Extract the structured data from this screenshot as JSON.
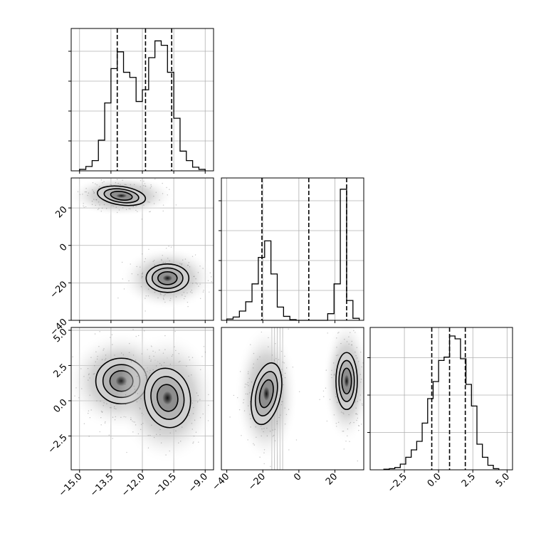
{
  "chart_data": {
    "type": "corner",
    "panels": [
      {
        "id": "hist-x",
        "type": "histogram",
        "x_ticks": [
          "−15.0",
          "−13.5",
          "−12.0",
          "−10.5",
          "−9.0"
        ],
        "x_tick_values": [
          -15.0,
          -13.5,
          -12.0,
          -10.5,
          -9.0
        ],
        "xlim": [
          -15.4,
          -8.6
        ],
        "bin_edges": [
          -15.0,
          -14.7,
          -14.4,
          -14.1,
          -13.8,
          -13.5,
          -13.2,
          -12.9,
          -12.6,
          -12.3,
          -12.0,
          -11.7,
          -11.4,
          -11.1,
          -10.8,
          -10.5,
          -10.2,
          -9.9,
          -9.6,
          -9.3,
          -9.0
        ],
        "counts": [
          2,
          6,
          14,
          42,
          93,
          140,
          163,
          135,
          128,
          95,
          111,
          155,
          178,
          172,
          135,
          72,
          27,
          14,
          5,
          2
        ],
        "ylim": [
          0,
          195
        ],
        "quantiles": [
          -13.2,
          -11.85,
          -10.6
        ]
      },
      {
        "id": "scatter-x-y",
        "type": "contour",
        "x_ticks": [
          "−15.0",
          "−13.5",
          "−12.0",
          "−10.5",
          "−9.0"
        ],
        "y_ticks": [
          "20",
          "0",
          "−20",
          "−40"
        ],
        "y_tick_values": [
          20,
          0,
          -20,
          -40
        ],
        "xlim": [
          -15.4,
          -8.6
        ],
        "ylim": [
          -40,
          36
        ],
        "clusters": [
          {
            "x": -13.0,
            "y": 26.5
          },
          {
            "x": -10.8,
            "y": -17.5
          }
        ]
      },
      {
        "id": "hist-y",
        "type": "histogram",
        "x_ticks": [
          "−40",
          "−20",
          "0",
          "20"
        ],
        "x_tick_values": [
          -40,
          -20,
          0,
          20
        ],
        "xlim": [
          -43,
          36
        ],
        "bin_edges": [
          -40,
          -36.5,
          -33,
          -29.5,
          -26,
          -22.5,
          -19,
          -15.5,
          -12,
          -8.5,
          -5,
          -1.5,
          2,
          5.5,
          9,
          12.5,
          16,
          19.5,
          23,
          26.5,
          30,
          33.5
        ],
        "counts": [
          2,
          5,
          14,
          28,
          55,
          95,
          120,
          70,
          20,
          6,
          1,
          0,
          0,
          0,
          0,
          0,
          10,
          55,
          198,
          30,
          3
        ],
        "ylim": [
          0,
          215
        ],
        "quantiles": [
          -20.5,
          5.5,
          26.5
        ]
      },
      {
        "id": "scatter-x-z",
        "type": "contour",
        "x_ticks": [
          "−15.0",
          "−13.5",
          "−12.0",
          "−10.5",
          "−9.0"
        ],
        "y_ticks": [
          "5.0",
          "2.5",
          "0.0",
          "−2.5"
        ],
        "y_tick_values": [
          5.0,
          2.5,
          0.0,
          -2.5
        ],
        "xlim": [
          -15.4,
          -8.6
        ],
        "ylim": [
          -4.9,
          5.2
        ],
        "clusters": [
          {
            "x": -13.0,
            "y": 1.4
          },
          {
            "x": -10.8,
            "y": 0.2
          }
        ]
      },
      {
        "id": "scatter-y-z",
        "type": "contour",
        "x_ticks": [
          "−40",
          "−20",
          "0",
          "20"
        ],
        "xlim": [
          -43,
          36
        ],
        "ylim": [
          -4.9,
          5.2
        ],
        "clusters": [
          {
            "x": -18.0,
            "y": 0.5
          },
          {
            "x": 26.5,
            "y": 1.4
          }
        ]
      },
      {
        "id": "hist-z",
        "type": "histogram",
        "x_ticks": [
          "−2.5",
          "0.0",
          "2.5",
          "5.0"
        ],
        "x_tick_values": [
          -2.5,
          0.0,
          2.5,
          5.0
        ],
        "xlim": [
          -5.0,
          5.4
        ],
        "bin_edges": [
          -4.0,
          -3.6,
          -3.2,
          -2.8,
          -2.4,
          -2.0,
          -1.6,
          -1.2,
          -0.8,
          -0.4,
          0.0,
          0.4,
          0.8,
          1.2,
          1.6,
          2.0,
          2.4,
          2.8,
          3.2,
          3.6,
          4.0,
          4.4
        ],
        "counts": [
          1,
          2,
          4,
          10,
          22,
          35,
          50,
          82,
          125,
          155,
          192,
          198,
          235,
          230,
          195,
          150,
          112,
          45,
          22,
          8,
          2
        ],
        "ylim": [
          0,
          250
        ],
        "quantiles": [
          -0.5,
          0.8,
          1.95
        ]
      }
    ]
  }
}
